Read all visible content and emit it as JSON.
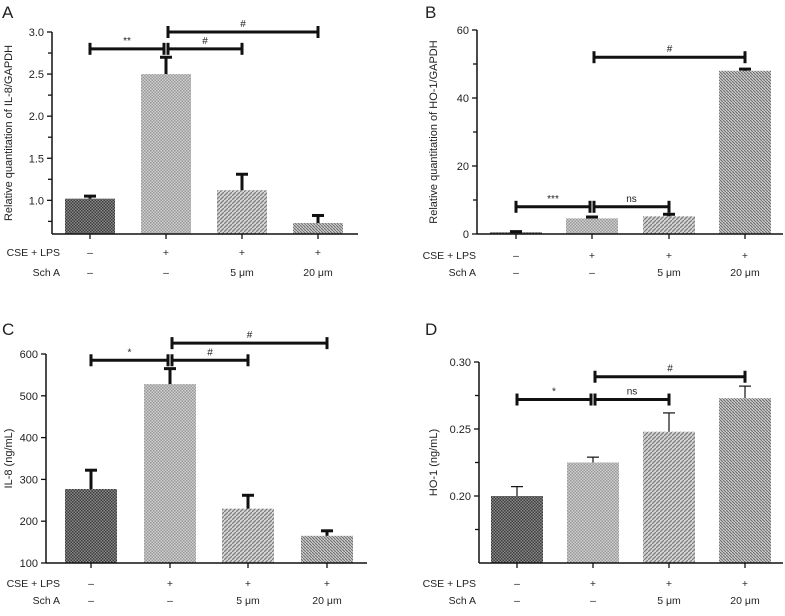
{
  "chart_data": [
    {
      "panel": "A",
      "type": "bar",
      "ylabel": "Relative quantitation of IL-8/GAPDH",
      "ylim": [
        0.6,
        3.0
      ],
      "yticks": [
        "1.0",
        "1.5",
        "2.0",
        "2.5",
        "3.0"
      ],
      "ytick_values": [
        1.0,
        1.5,
        2.0,
        2.5,
        3.0
      ],
      "minor_ticks": [
        0.75,
        1.25,
        1.75,
        2.25,
        2.75
      ],
      "row_labels": [
        "CSE + LPS",
        "Sch A"
      ],
      "categories": [
        [
          "–",
          "–"
        ],
        [
          "+",
          "–"
        ],
        [
          "+",
          "5 μm"
        ],
        [
          "+",
          "20 μm"
        ]
      ],
      "values": [
        1.02,
        2.5,
        1.12,
        0.73
      ],
      "errors": [
        0.03,
        0.2,
        0.19,
        0.09
      ],
      "significance": [
        {
          "from": 0,
          "to": 1,
          "level": 2.8,
          "label": "**"
        },
        {
          "from": 1,
          "to": 2,
          "level": 2.8,
          "label": "#"
        },
        {
          "from": 1,
          "to": 3,
          "level": 3.0,
          "label": "#"
        }
      ]
    },
    {
      "panel": "B",
      "type": "bar",
      "ylabel": "Relative quantitation of HO-1/GAPDH",
      "ylim": [
        0,
        60
      ],
      "yticks": [
        "0",
        "20",
        "40",
        "60"
      ],
      "ytick_values": [
        0,
        20,
        40,
        60
      ],
      "minor_ticks": [
        10,
        30,
        50
      ],
      "row_labels": [
        "CSE + LPS",
        "Sch A"
      ],
      "categories": [
        [
          "–",
          "–"
        ],
        [
          "+",
          "–"
        ],
        [
          "+",
          "5 μm"
        ],
        [
          "+",
          "20 μm"
        ]
      ],
      "values": [
        0.5,
        4.6,
        5.2,
        48
      ],
      "errors": [
        0.2,
        0.4,
        0.6,
        0.5
      ],
      "significance": [
        {
          "from": 0,
          "to": 1,
          "level": 8,
          "label": "***"
        },
        {
          "from": 1,
          "to": 2,
          "level": 8,
          "label": "ns"
        },
        {
          "from": 1,
          "to": 3,
          "level": 52,
          "label": "#"
        }
      ]
    },
    {
      "panel": "C",
      "type": "bar",
      "ylabel": "IL-8 (ng/mL)",
      "ylim": [
        100,
        600
      ],
      "yticks": [
        "100",
        "200",
        "300",
        "400",
        "500",
        "600"
      ],
      "ytick_values": [
        100,
        200,
        300,
        400,
        500,
        600
      ],
      "minor_ticks": [],
      "row_labels": [
        "CSE + LPS",
        "Sch A"
      ],
      "categories": [
        [
          "–",
          "–"
        ],
        [
          "+",
          "–"
        ],
        [
          "+",
          "5 μm"
        ],
        [
          "+",
          "20 μm"
        ]
      ],
      "values": [
        277,
        528,
        230,
        165
      ],
      "errors": [
        45,
        37,
        32,
        12
      ],
      "significance": [
        {
          "from": 0,
          "to": 1,
          "level": 585,
          "label": "*"
        },
        {
          "from": 1,
          "to": 2,
          "level": 585,
          "label": "#"
        },
        {
          "from": 1,
          "to": 3,
          "level": 626,
          "label": "#"
        }
      ]
    },
    {
      "panel": "D",
      "type": "bar",
      "ylabel": "HO-1 (ng/mL)",
      "ylim": [
        0.15,
        0.3
      ],
      "yticks": [
        "0.20",
        "0.25",
        "0.30"
      ],
      "ytick_values": [
        0.2,
        0.25,
        0.3
      ],
      "minor_ticks": [
        0.175,
        0.225,
        0.275
      ],
      "row_labels": [
        "CSE + LPS",
        "Sch A"
      ],
      "categories": [
        [
          "–",
          "–"
        ],
        [
          "+",
          "–"
        ],
        [
          "+",
          "5 μm"
        ],
        [
          "+",
          "20 μm"
        ]
      ],
      "values": [
        0.2,
        0.225,
        0.248,
        0.273
      ],
      "errors": [
        0.007,
        0.004,
        0.014,
        0.009
      ],
      "significance": [
        {
          "from": 0,
          "to": 1,
          "level": 0.272,
          "label": "*"
        },
        {
          "from": 1,
          "to": 2,
          "level": 0.272,
          "label": "ns"
        },
        {
          "from": 1,
          "to": 3,
          "level": 0.289,
          "label": "#"
        }
      ]
    }
  ],
  "colors": {
    "bar_dark": "#555555",
    "bar_light": "#aaaaaa",
    "line": "#111111"
  }
}
